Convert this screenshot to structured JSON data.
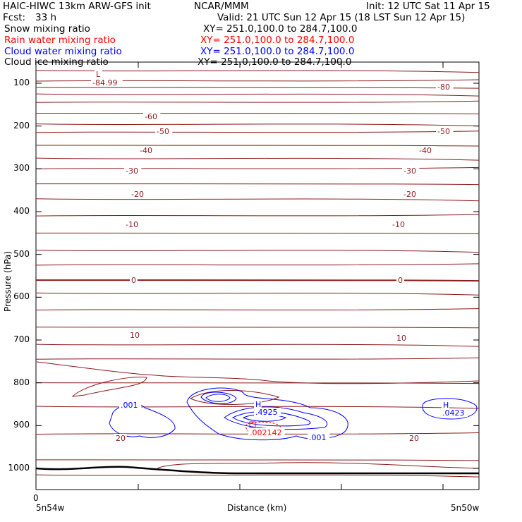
{
  "header": {
    "model": "HAIC-HIWC 13km ARW-GFS init",
    "org": "NCAR/MMM",
    "init": "Init: 12 UTC Sat 11 Apr 15",
    "fcst_label": "Fcst:",
    "fcst_value": "33 h",
    "valid": "Valid: 21 UTC Sun 12 Apr 15 (18 LST Sun 12 Apr 15)"
  },
  "fields": [
    {
      "name": "Snow mixing ratio",
      "xy": "XY= 251.0,100.0 to 284.7,100.0",
      "color": "#000000"
    },
    {
      "name": "Rain water mixing ratio",
      "xy": "XY= 251.0,100.0 to 284.7,100.0",
      "color": "#ff0000"
    },
    {
      "name": "Cloud water mixing ratio",
      "xy": "XY= 251.0,100.0 to 284.7,100.0",
      "color": "#0000ff"
    },
    {
      "name": "Cloud ice mixing ratio",
      "xy": "XY= 251.0,100.0 to 284.7,100.0",
      "color": "#000000"
    }
  ],
  "chart_data": {
    "type": "line",
    "title": "",
    "xlabel": "Distance (km)",
    "ylabel": "Pressure (hPa)",
    "x_tick_labels": [
      "0"
    ],
    "x_end_labels": [
      "5n54w",
      "5n50w"
    ],
    "y_ticks": [
      100,
      200,
      300,
      400,
      500,
      600,
      700,
      800,
      900,
      1000
    ],
    "ylim": [
      1050,
      50
    ],
    "colors": {
      "temperature": "#8b1a1a",
      "cloud_water": "#0000ff",
      "rain": "#ff0000",
      "terrain": "#000000"
    },
    "temperature_isotherm_labels": [
      "-84.99",
      "-80",
      "-60",
      "-50",
      "-50",
      "-40",
      "-40",
      "-30",
      "-30",
      "-20",
      "-20",
      "-10",
      "-10",
      "0",
      "0",
      "10",
      "10",
      "20",
      "20"
    ],
    "extrema_labels": [
      {
        "mark": "L",
        "value": "-84.99"
      },
      {
        "mark": "H",
        "value": ".4925"
      },
      {
        "mark": "H",
        "value": ".0423"
      }
    ],
    "cloud_water_labels": [
      ".001",
      ".001",
      ".4925",
      ".0423"
    ],
    "rain_labels": [
      ".002142"
    ],
    "isotherm_pressures": [
      70,
      95,
      110,
      125,
      145,
      170,
      195,
      215,
      245,
      275,
      300,
      335,
      370,
      410,
      450,
      490,
      525,
      560,
      590,
      630,
      670,
      710,
      745,
      800,
      855,
      920,
      980,
      1015
    ]
  }
}
